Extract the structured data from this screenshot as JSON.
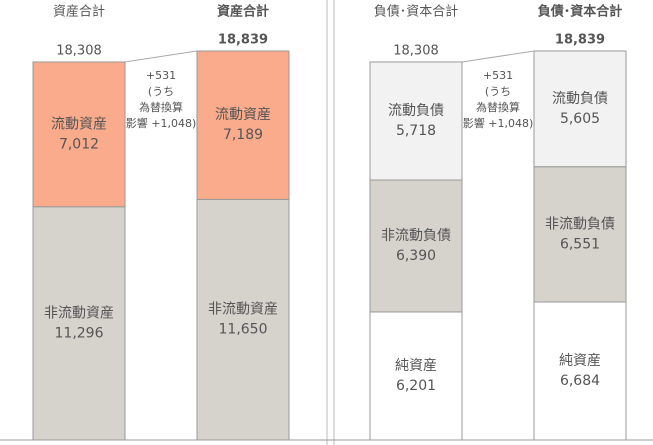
{
  "chart_data": [
    {
      "type": "stacked-bar",
      "categories": [
        "資産合計",
        "資産合計"
      ],
      "totals": [
        18308,
        18839
      ],
      "total_labels": [
        "18,308",
        "18,839"
      ],
      "annotation": [
        "+531",
        "(うち",
        "為替換算",
        "影響 +1,048)"
      ],
      "series": [
        {
          "name": "非流動資産",
          "color": "#d6d2cc",
          "values": [
            11296,
            11650
          ],
          "value_labels": [
            "11,296",
            "11,650"
          ]
        },
        {
          "name": "流動資産",
          "color": "#f9ab8c",
          "values": [
            7012,
            7189
          ],
          "value_labels": [
            "7,012",
            "7,189"
          ]
        }
      ]
    },
    {
      "type": "stacked-bar",
      "categories": [
        "負債･資本合計",
        "負債･資本合計"
      ],
      "totals": [
        18308,
        18839
      ],
      "total_labels": [
        "18,308",
        "18,839"
      ],
      "annotation": [
        "+531",
        "(うち",
        "為替換算",
        "影響 +1,048)"
      ],
      "series": [
        {
          "name": "純資産",
          "color": "#ffffff",
          "values": [
            6201,
            6684
          ],
          "value_labels": [
            "6,201",
            "6,684"
          ]
        },
        {
          "name": "非流動負債",
          "color": "#d6d2cc",
          "values": [
            6390,
            6551
          ],
          "value_labels": [
            "6,390",
            "6,551"
          ]
        },
        {
          "name": "流動負債",
          "color": "#f2f2f2",
          "values": [
            5718,
            5605
          ],
          "value_labels": [
            "5,718",
            "5,605"
          ]
        }
      ]
    }
  ]
}
